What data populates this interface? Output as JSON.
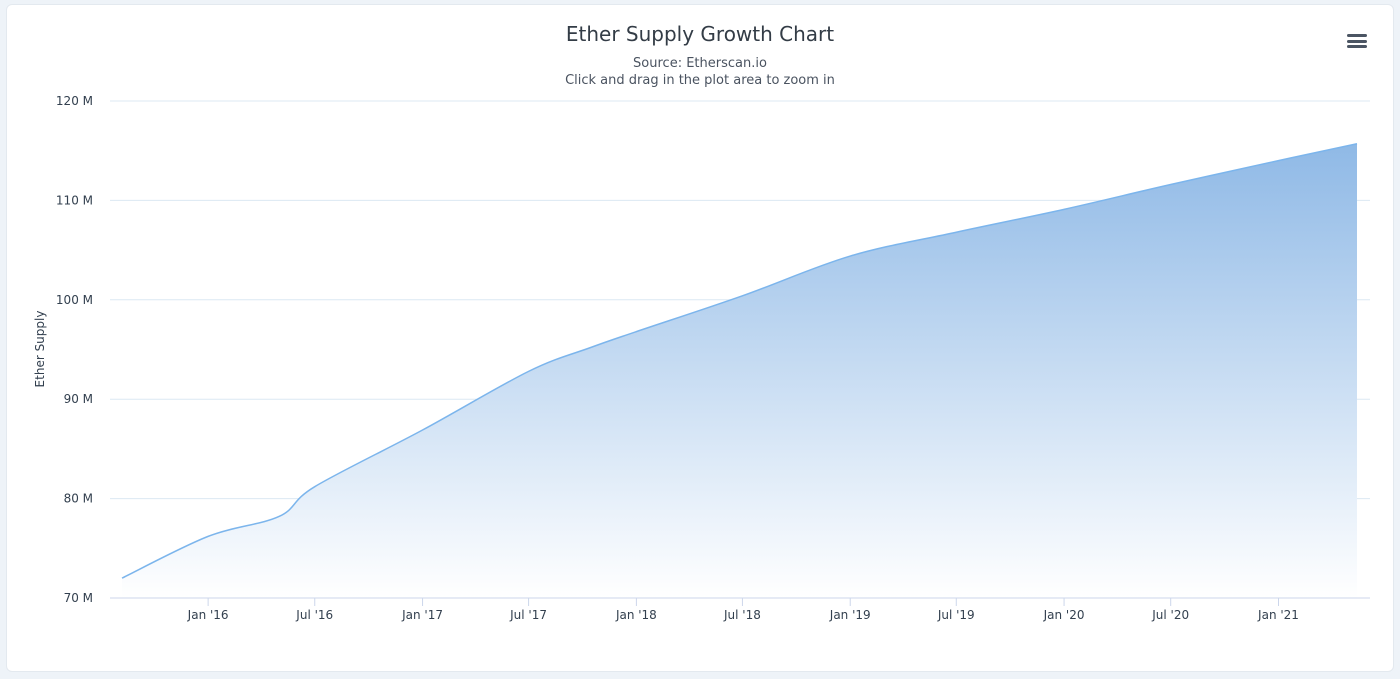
{
  "header": {
    "menu_icon": "hamburger-menu-icon"
  },
  "chart_data": {
    "type": "area",
    "title": "Ether Supply Growth Chart",
    "subtitle": "Source: Etherscan.io",
    "subtitle2": "Click and drag in the plot area to zoom in",
    "xlabel": "",
    "ylabel": "Ether Supply",
    "ylim": [
      70,
      120
    ],
    "y_ticks": [
      70,
      80,
      90,
      100,
      110,
      120
    ],
    "y_tick_labels": [
      "70 M",
      "80 M",
      "90 M",
      "100 M",
      "110 M",
      "120 M"
    ],
    "x_range": [
      "2015-08-07",
      "2021-05-15"
    ],
    "x_ticks": [
      "2016-01-01",
      "2016-07-01",
      "2017-01-01",
      "2017-07-01",
      "2018-01-01",
      "2018-07-01",
      "2019-01-01",
      "2019-07-01",
      "2020-01-01",
      "2020-07-01",
      "2021-01-01"
    ],
    "x_tick_labels": [
      "Jan '16",
      "Jul '16",
      "Jan '17",
      "Jul '17",
      "Jan '18",
      "Jul '18",
      "Jan '19",
      "Jul '19",
      "Jan '20",
      "Jul '20",
      "Jan '21"
    ],
    "grid": true,
    "legend": "none",
    "colors": {
      "line": "#7cb5ec",
      "fill_top": "#8fb9e6",
      "fill_bottom": "#ffffff",
      "grid": "#dce8f3",
      "axis": "#ccd6eb"
    },
    "series": [
      {
        "x": [
          "2015-08-07",
          "2016-01-01",
          "2016-05-01",
          "2016-07-01",
          "2017-01-01",
          "2017-07-01",
          "2017-10-15",
          "2018-01-01",
          "2018-07-01",
          "2019-01-01",
          "2019-07-01",
          "2020-01-01",
          "2020-07-01",
          "2021-01-01",
          "2021-05-15"
        ],
        "values": [
          72.0,
          76.2,
          78.2,
          81.2,
          86.9,
          92.8,
          95.2,
          96.8,
          100.4,
          104.4,
          106.8,
          109.1,
          111.6,
          114.0,
          115.7
        ]
      }
    ]
  }
}
